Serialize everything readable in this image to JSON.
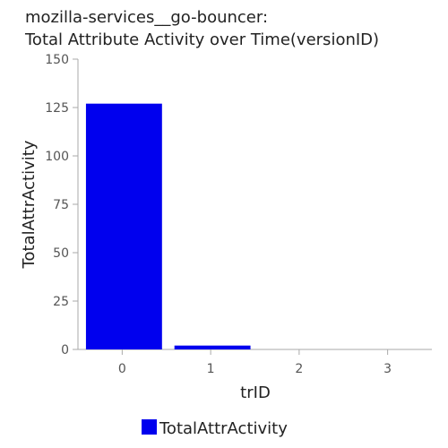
{
  "chart_data": {
    "type": "bar",
    "title_line1": "mozilla-services__go-bouncer:",
    "title_line2": "Total Attribute Activity over Time(versionID)",
    "xlabel": "trID",
    "ylabel": "TotalAttrActivity",
    "categories": [
      "0",
      "1",
      "2",
      "3"
    ],
    "series": [
      {
        "name": "TotalAttrActivity",
        "values": [
          127,
          2,
          0,
          0
        ],
        "color": "#0000ee"
      }
    ],
    "ylim": [
      0,
      150
    ],
    "yticks": [
      0,
      25,
      50,
      75,
      100,
      125,
      150
    ],
    "grid": false,
    "legend_position": "bottom-center"
  }
}
